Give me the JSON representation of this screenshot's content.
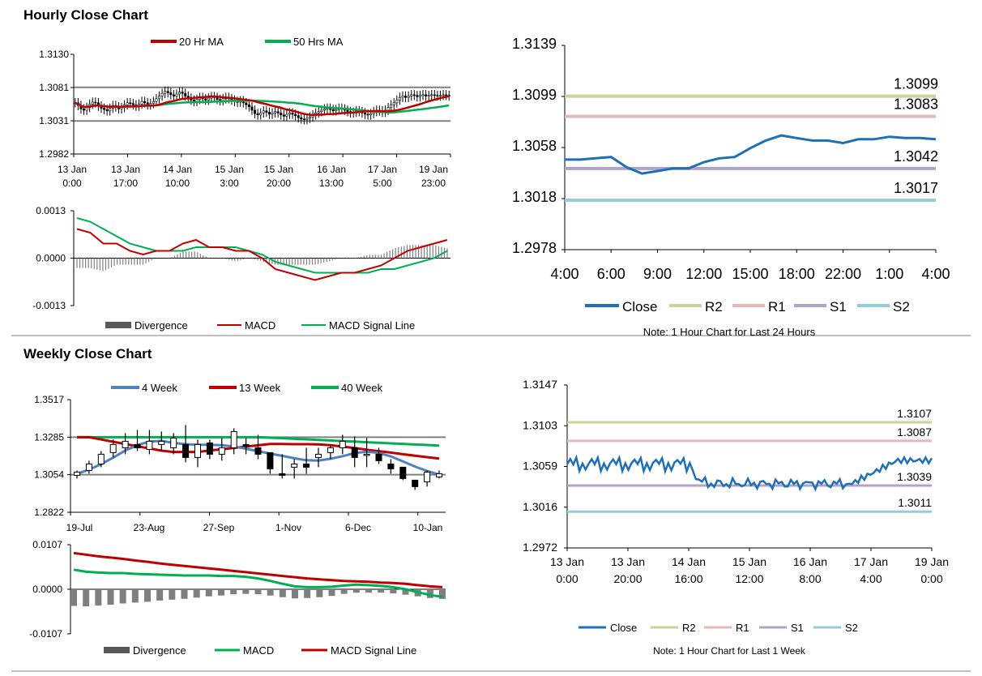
{
  "colors": {
    "ma20": "#c00000",
    "ma50": "#00b050",
    "wk4": "#4f81bd",
    "wk13": "#c00000",
    "wk40": "#00b050",
    "macd_red": "#c00000",
    "macd_green": "#00b050",
    "divergence": "#7f7f7f",
    "close": "#1f6fb5",
    "r2": "#c3d69b",
    "r1": "#e6b9b8",
    "s1": "#b3a2c7",
    "s2": "#93cddd",
    "grid": "#808080",
    "axis": "#000000"
  },
  "hourly": {
    "title": "Hourly Close Chart",
    "legend": {
      "ma20": "20 Hr MA",
      "ma50": "50 Hrs MA"
    },
    "macd_legend": {
      "divergence": "Divergence",
      "macd": "MACD",
      "signal": "MACD Signal Line"
    },
    "note": "Note: 1 Hour Chart for Last 24 Hours",
    "right_legend": {
      "close": "Close",
      "r2": "R2",
      "r1": "R1",
      "s1": "S1",
      "s2": "S2"
    }
  },
  "weekly": {
    "title": "Weekly Close Chart",
    "legend": {
      "wk4": "4 Week",
      "wk13": "13 Week",
      "wk40": "40 Week"
    },
    "macd_legend": {
      "divergence": "Divergence",
      "macd": "MACD",
      "signal": "MACD Signal Line"
    },
    "note": "Note: 1 Hour Chart for  Last 1 Week",
    "right_legend": {
      "close": "Close",
      "r2": "R2",
      "r1": "R1",
      "s1": "S1",
      "s2": "S2"
    }
  },
  "chart_data": [
    {
      "id": "hourly_price",
      "type": "candlestick",
      "title": "Hourly Close Chart",
      "ylim": [
        1.2982,
        1.313
      ],
      "yticks": [
        "1.3130",
        "1.3081",
        "1.3031",
        "1.2982"
      ],
      "xticks": [
        [
          "13 Jan",
          "0:00"
        ],
        [
          "13 Jan",
          "17:00"
        ],
        [
          "14 Jan",
          "10:00"
        ],
        [
          "15 Jan",
          "3:00"
        ],
        [
          "15 Jan",
          "20:00"
        ],
        [
          "16 Jan",
          "13:00"
        ],
        [
          "17 Jan",
          "5:00"
        ],
        [
          "19 Jan",
          "23:00"
        ]
      ],
      "gridlines": [
        1.3081,
        1.3031
      ],
      "n": 130,
      "close": [
        1.3058,
        1.3054,
        1.3049,
        1.3047,
        1.3051,
        1.3056,
        1.3059,
        1.3058,
        1.3053,
        1.305,
        1.3048,
        1.3046,
        1.305,
        1.3054,
        1.3052,
        1.3049,
        1.3051,
        1.3055,
        1.3058,
        1.3057,
        1.3055,
        1.3053,
        1.3056,
        1.306,
        1.3058,
        1.3055,
        1.3057,
        1.306,
        1.3064,
        1.3068,
        1.3072,
        1.3075,
        1.3073,
        1.307,
        1.3068,
        1.3071,
        1.3074,
        1.3072,
        1.3068,
        1.3065,
        1.3062,
        1.306,
        1.3063,
        1.3066,
        1.3064,
        1.3062,
        1.3065,
        1.3067,
        1.3066,
        1.3063,
        1.3061,
        1.3064,
        1.3066,
        1.3064,
        1.3062,
        1.306,
        1.3059,
        1.3061,
        1.3058,
        1.3055,
        1.3052,
        1.3047,
        1.3042,
        1.304,
        1.3043,
        1.3046,
        1.3044,
        1.3041,
        1.3043,
        1.3045,
        1.3043,
        1.304,
        1.3038,
        1.3041,
        1.3043,
        1.3041,
        1.3039,
        1.3036,
        1.3034,
        1.3033,
        1.3035,
        1.3037,
        1.304,
        1.3043,
        1.3045,
        1.3047,
        1.3049,
        1.305,
        1.3048,
        1.3046,
        1.3048,
        1.305,
        1.3049,
        1.3047,
        1.3045,
        1.3043,
        1.3044,
        1.3046,
        1.3045,
        1.3043,
        1.3041,
        1.304,
        1.3042,
        1.3045,
        1.3047,
        1.3046,
        1.3044,
        1.3047,
        1.3051,
        1.3055,
        1.3058,
        1.3062,
        1.3066,
        1.3068,
        1.3066,
        1.3068,
        1.307,
        1.3069,
        1.3067,
        1.3069,
        1.307,
        1.3068,
        1.3069,
        1.307,
        1.3069,
        1.3068,
        1.3069,
        1.307,
        1.3069,
        1.3068
      ],
      "ma20_range": [
        1.3059,
        1.3061,
        1.3044,
        1.3051,
        1.3055
      ],
      "ma50_range": [
        1.3062,
        1.3057,
        1.3045,
        1.3048
      ]
    },
    {
      "id": "hourly_macd",
      "type": "line+bar",
      "ylim": [
        -0.0013,
        0.0013
      ],
      "yticks": [
        "0.0013",
        "0.0000",
        "-0.0013"
      ],
      "macd": [
        0.0008,
        0.0007,
        0.0004,
        0.0004,
        0.0002,
        0.0001,
        0.0002,
        0.0002,
        0.0004,
        0.0005,
        0.0003,
        0.0003,
        0.0002,
        0.0002,
        0.0,
        -0.0003,
        -0.0004,
        -0.0005,
        -0.0006,
        -0.0005,
        -0.0004,
        -0.0004,
        -0.0003,
        -0.0002,
        0.0,
        0.0002,
        0.0003,
        0.0004,
        0.0005
      ],
      "signal": [
        0.0011,
        0.001,
        0.0008,
        0.0006,
        0.0004,
        0.0003,
        0.0002,
        0.0002,
        0.0002,
        0.0003,
        0.0003,
        0.0003,
        0.0003,
        0.0002,
        0.0001,
        -0.0001,
        -0.0002,
        -0.0003,
        -0.0004,
        -0.0004,
        -0.0004,
        -0.0004,
        -0.0004,
        -0.0003,
        -0.0003,
        -0.0002,
        -0.0001,
        0.0,
        0.0002
      ]
    },
    {
      "id": "hourly_24h",
      "type": "line",
      "ylim": [
        1.2978,
        1.3139
      ],
      "yticks": [
        "1.3139",
        "1.3099",
        "1.3058",
        "1.3018",
        "1.2978"
      ],
      "xticks": [
        "4:00",
        "6:00",
        "9:00",
        "12:00",
        "15:00",
        "18:00",
        "22:00",
        "1:00",
        "4:00"
      ],
      "x": [
        0,
        1,
        2,
        3,
        4,
        5,
        6,
        7,
        8,
        9,
        10,
        11,
        12,
        13,
        14,
        15,
        16,
        17,
        18,
        19,
        20,
        21,
        22,
        23,
        24
      ],
      "close": [
        1.3049,
        1.3049,
        1.305,
        1.3051,
        1.3043,
        1.3038,
        1.304,
        1.3042,
        1.3042,
        1.3047,
        1.305,
        1.3051,
        1.3058,
        1.3064,
        1.3068,
        1.3066,
        1.3064,
        1.3064,
        1.3062,
        1.3065,
        1.3065,
        1.3067,
        1.3066,
        1.3066,
        1.3065
      ],
      "levels": {
        "R2": 1.3099,
        "R1": 1.3083,
        "S1": 1.3042,
        "S2": 1.3017
      },
      "level_labels": {
        "R2": "1.3099",
        "R1": "1.3083",
        "S1": "1.3042",
        "S2": "1.3017"
      }
    },
    {
      "id": "weekly_price",
      "type": "candlestick",
      "title": "Weekly Close Chart",
      "ylim": [
        1.2822,
        1.3517
      ],
      "yticks": [
        "1.3517",
        "1.3285",
        "1.3054",
        "1.2822"
      ],
      "xticks": [
        "19-Jul",
        "23-Aug",
        "27-Sep",
        "1-Nov",
        "6-Dec",
        "10-Jan"
      ],
      "gridlines": [
        1.3285,
        1.3054
      ],
      "candles": [
        [
          1.305,
          1.307,
          1.303,
          1.308
        ],
        [
          1.308,
          1.312,
          1.306,
          1.314
        ],
        [
          1.312,
          1.318,
          1.31,
          1.32
        ],
        [
          1.319,
          1.324,
          1.316,
          1.327
        ],
        [
          1.322,
          1.326,
          1.318,
          1.331
        ],
        [
          1.324,
          1.322,
          1.32,
          1.333
        ],
        [
          1.321,
          1.326,
          1.318,
          1.333
        ],
        [
          1.324,
          1.326,
          1.32,
          1.332
        ],
        [
          1.322,
          1.328,
          1.318,
          1.331
        ],
        [
          1.324,
          1.316,
          1.313,
          1.336
        ],
        [
          1.316,
          1.324,
          1.31,
          1.327
        ],
        [
          1.325,
          1.318,
          1.315,
          1.327
        ],
        [
          1.318,
          1.322,
          1.314,
          1.328
        ],
        [
          1.322,
          1.332,
          1.318,
          1.334
        ],
        [
          1.324,
          1.323,
          1.318,
          1.328
        ],
        [
          1.322,
          1.318,
          1.315,
          1.33
        ],
        [
          1.319,
          1.309,
          1.306,
          1.319
        ],
        [
          1.306,
          1.305,
          1.303,
          1.318
        ],
        [
          1.31,
          1.312,
          1.303,
          1.315
        ],
        [
          1.312,
          1.31,
          1.306,
          1.322
        ],
        [
          1.316,
          1.318,
          1.31,
          1.322
        ],
        [
          1.319,
          1.322,
          1.315,
          1.324
        ],
        [
          1.322,
          1.326,
          1.318,
          1.33
        ],
        [
          1.322,
          1.316,
          1.31,
          1.329
        ],
        [
          1.318,
          1.318,
          1.31,
          1.328
        ],
        [
          1.318,
          1.314,
          1.312,
          1.322
        ],
        [
          1.312,
          1.309,
          1.306,
          1.315
        ],
        [
          1.31,
          1.303,
          1.302,
          1.31
        ],
        [
          1.302,
          1.298,
          1.296,
          1.302
        ],
        [
          1.301,
          1.307,
          1.298,
          1.308
        ],
        [
          1.304,
          1.306,
          1.303,
          1.308
        ]
      ],
      "wk4": [
        1.3059,
        1.3085,
        1.3119,
        1.3159,
        1.3203,
        1.3236,
        1.3258,
        1.3262,
        1.325,
        1.3242,
        1.3238,
        1.3238,
        1.3236,
        1.3228,
        1.3214,
        1.3199,
        1.3184,
        1.317,
        1.3155,
        1.3143,
        1.3141,
        1.3152,
        1.3168,
        1.3187,
        1.3196,
        1.3188,
        1.3167,
        1.3136,
        1.3104,
        1.3077,
        1.3054
      ],
      "wk13": [
        1.3285,
        1.3285,
        1.3271,
        1.3257,
        1.3243,
        1.3229,
        1.3216,
        1.3202,
        1.3194,
        1.3194,
        1.3194,
        1.3203,
        1.3211,
        1.3219,
        1.3227,
        1.3235,
        1.3243,
        1.3243,
        1.3242,
        1.3242,
        1.3241,
        1.3236,
        1.3227,
        1.3218,
        1.3208,
        1.3199,
        1.319,
        1.318,
        1.3171,
        1.3162,
        1.3153
      ],
      "wk40": [
        1.3285,
        1.3285,
        1.3285,
        1.3285,
        1.3285,
        1.3285,
        1.3285,
        1.3285,
        1.3285,
        1.3285,
        1.3285,
        1.3285,
        1.3285,
        1.3285,
        1.3285,
        1.3285,
        1.3282,
        1.3279,
        1.3275,
        1.3272,
        1.3268,
        1.3265,
        1.3261,
        1.3258,
        1.3254,
        1.3251,
        1.3247,
        1.3244,
        1.324,
        1.3237,
        1.3233
      ]
    },
    {
      "id": "weekly_macd",
      "type": "line+bar",
      "ylim": [
        -0.0107,
        0.0107
      ],
      "yticks": [
        "0.0107",
        "0.0000",
        "-0.0107"
      ],
      "macd": [
        0.0047,
        0.0042,
        0.004,
        0.0039,
        0.0039,
        0.0037,
        0.0036,
        0.0035,
        0.0034,
        0.0033,
        0.0033,
        0.0033,
        0.0032,
        0.0032,
        0.003,
        0.0026,
        0.002,
        0.0013,
        0.0007,
        0.0005,
        0.0005,
        0.0006,
        0.0009,
        0.0011,
        0.001,
        0.0008,
        0.0005,
        0.0,
        -0.0007,
        -0.0014,
        -0.0018
      ],
      "signal": [
        0.0087,
        0.0083,
        0.0079,
        0.0076,
        0.0073,
        0.0069,
        0.0066,
        0.0062,
        0.0059,
        0.0056,
        0.0053,
        0.005,
        0.0047,
        0.0044,
        0.0041,
        0.0038,
        0.0035,
        0.0032,
        0.0029,
        0.0026,
        0.0024,
        0.0022,
        0.002,
        0.0019,
        0.0018,
        0.0016,
        0.0015,
        0.0013,
        0.001,
        0.0007,
        0.0005
      ],
      "divergence": [
        -0.004,
        -0.0041,
        -0.0039,
        -0.0037,
        -0.0034,
        -0.0032,
        -0.003,
        -0.0027,
        -0.0025,
        -0.0023,
        -0.002,
        -0.0017,
        -0.0015,
        -0.0012,
        -0.0011,
        -0.0012,
        -0.0015,
        -0.0019,
        -0.0022,
        -0.0021,
        -0.0019,
        -0.0016,
        -0.0011,
        -0.0008,
        -0.0008,
        -0.0008,
        -0.001,
        -0.0013,
        -0.0017,
        -0.0021,
        -0.0023
      ]
    },
    {
      "id": "weekly_1w",
      "type": "line",
      "ylim": [
        1.2972,
        1.3147
      ],
      "yticks": [
        "1.3147",
        "1.3103",
        "1.3059",
        "1.3016",
        "1.2972"
      ],
      "xticks": [
        [
          "13 Jan",
          "0:00"
        ],
        [
          "13 Jan",
          "20:00"
        ],
        [
          "14 Jan",
          "16:00"
        ],
        [
          "15 Jan",
          "12:00"
        ],
        [
          "16 Jan",
          "8:00"
        ],
        [
          "17 Jan",
          "4:00"
        ],
        [
          "19 Jan",
          "0:00"
        ]
      ],
      "levels": {
        "R2": 1.3107,
        "R1": 1.3087,
        "S1": 1.3039,
        "S2": 1.3011
      },
      "level_labels": {
        "R2": "1.3107",
        "R1": "1.3087",
        "S1": "1.3039",
        "S2": "1.3011"
      },
      "n": 120
    }
  ]
}
